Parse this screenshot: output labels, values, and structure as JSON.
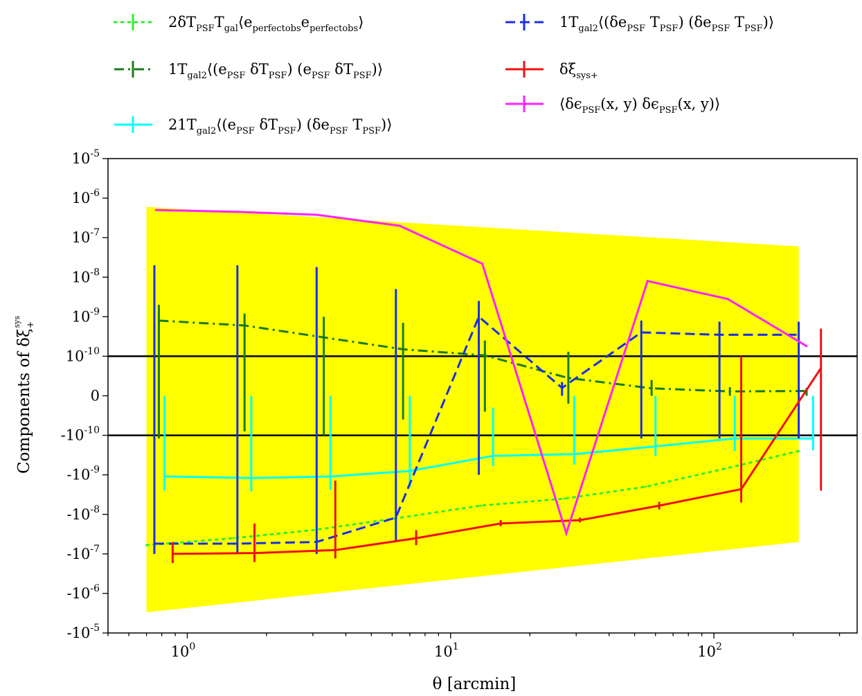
{
  "chart_data": {
    "type": "line",
    "xlabel": "θ [arcmin]",
    "ylabel_main": "Components of δξ",
    "ylabel_sub": "+",
    "ylabel_sup": "sys",
    "x_scale": "log",
    "y_scale": "symlog",
    "xlim": [
      0.5,
      350
    ],
    "ylim": [
      -1e-05,
      1e-05
    ],
    "linthresh": 1e-10,
    "x_ticks": [
      {
        "value": 1,
        "base": "10",
        "exp": "0"
      },
      {
        "value": 10,
        "base": "10",
        "exp": "1"
      },
      {
        "value": 100,
        "base": "10",
        "exp": "2"
      }
    ],
    "y_ticks": [
      {
        "value": 1e-05,
        "base": "10",
        "exp": "-5"
      },
      {
        "value": 1e-06,
        "base": "10",
        "exp": "-6"
      },
      {
        "value": 1e-07,
        "base": "10",
        "exp": "-7"
      },
      {
        "value": 1e-08,
        "base": "10",
        "exp": "-8"
      },
      {
        "value": 1e-09,
        "base": "10",
        "exp": "-9"
      },
      {
        "value": 1e-10,
        "base": "10",
        "exp": "-10"
      },
      {
        "value": 0,
        "base": "0",
        "exp": ""
      },
      {
        "value": -1e-10,
        "base": "-10",
        "exp": "-10"
      },
      {
        "value": -1e-09,
        "base": "-10",
        "exp": "-9"
      },
      {
        "value": -1e-08,
        "base": "-10",
        "exp": "-8"
      },
      {
        "value": -1e-07,
        "base": "-10",
        "exp": "-7"
      },
      {
        "value": -1e-06,
        "base": "-10",
        "exp": "-6"
      },
      {
        "value": -1e-05,
        "base": "-10",
        "exp": "-5"
      }
    ],
    "hlines": [
      1e-10,
      -1e-10
    ],
    "shaded_region": {
      "color": "#ffff00",
      "x": [
        0.7,
        210
      ],
      "upper": [
        6e-07,
        6e-08
      ],
      "lower": [
        -3e-06,
        -5e-08
      ]
    },
    "series": [
      {
        "legend_parts": [
          "2",
          "δT",
          "PSF",
          "T",
          "gal",
          "⟨e",
          "perfect",
          "obs",
          "e",
          "perfect",
          "obs",
          "⟩"
        ],
        "color": "#33ee33",
        "style": "dotted",
        "x": [
          0.7,
          1.5,
          3.0,
          6.0,
          13.0,
          27.0,
          55.0,
          110.0,
          210.0
        ],
        "y": [
          -6e-08,
          -4e-08,
          -2.5e-08,
          -1.3e-08,
          -6e-09,
          -4e-09,
          -2e-09,
          -7e-10,
          -2.5e-10
        ],
        "err": []
      },
      {
        "legend_parts": [
          "1",
          "T",
          "gal",
          "2",
          "⟨(e",
          "PSF",
          " δT",
          "PSF",
          ") (e",
          "PSF",
          " δT",
          "PSF",
          ")⟩"
        ],
        "color": "#1a7a1a",
        "style": "dashdot",
        "x": [
          0.78,
          1.65,
          3.3,
          6.6,
          13.5,
          28.0,
          58.0,
          115.0,
          225.0
        ],
        "y": [
          8e-10,
          6e-10,
          3e-10,
          1.5e-10,
          1.05e-10,
          4.5e-11,
          1.9e-11,
          1.1e-11,
          1.2e-11
        ],
        "err": [
          [
            -1.2e-10,
            2e-09
          ],
          [
            -9e-11,
            1.2e-09
          ],
          [
            -1e-10,
            1e-09
          ],
          [
            -6e-11,
            7e-10
          ],
          [
            -4e-11,
            2.5e-10
          ],
          [
            -2e-11,
            1.3e-10
          ],
          [
            0,
            4e-11
          ],
          [
            0,
            2.2e-11
          ],
          [
            0,
            2e-11
          ]
        ]
      },
      {
        "legend_parts": [
          "2",
          "1",
          "T",
          "gal",
          "2",
          "⟨(e",
          "PSF",
          " δT",
          "PSF",
          ") (δe",
          "PSF",
          " T",
          "PSF",
          ")⟩"
        ],
        "color": "#00ffff",
        "style": "solid",
        "x": [
          0.82,
          1.75,
          3.5,
          7.0,
          14.5,
          29.5,
          60.0,
          120.0,
          238.0
        ],
        "y": [
          -1.1e-09,
          -1.2e-09,
          -1.1e-09,
          -8e-10,
          -3.3e-10,
          -3e-10,
          -1.9e-10,
          -1.2e-10,
          -1.2e-10
        ],
        "err": [
          [
            -2.5e-09,
            0
          ],
          [
            -2.6e-09,
            0
          ],
          [
            -2.4e-09,
            0
          ],
          [
            -2e-09,
            0
          ],
          [
            -6e-10,
            -3e-11
          ],
          [
            -5.5e-10,
            0
          ],
          [
            -3.4e-10,
            0
          ],
          [
            -2.5e-10,
            0
          ],
          [
            -2.4e-10,
            0
          ]
        ]
      },
      {
        "legend_parts": [
          "1",
          "T",
          "gal",
          "2",
          "⟨(δe",
          "PSF",
          " T",
          "PSF",
          ") (δe",
          "PSF",
          " T",
          "PSF",
          ")⟩"
        ],
        "color": "#1a2ee6",
        "style": "dashed",
        "x": [
          0.75,
          1.55,
          3.1,
          6.2,
          12.8,
          26.5,
          53.0,
          105.0,
          210.0
        ],
        "y": [
          -5.5e-08,
          -5.5e-08,
          -5e-08,
          -1.2e-08,
          1e-09,
          2e-11,
          4e-10,
          3.5e-10,
          3.5e-10
        ],
        "err": [
          [
            -1e-07,
            2e-08
          ],
          [
            -1e-07,
            2e-08
          ],
          [
            -1e-07,
            1.8e-08
          ],
          [
            -5e-08,
            5e-09
          ],
          [
            -1e-09,
            2.5e-09
          ],
          [
            0,
            3.5e-11
          ],
          [
            -1.2e-10,
            8e-10
          ],
          [
            -1.2e-10,
            7.5e-10
          ],
          [
            -1.2e-10,
            7.5e-10
          ]
        ]
      },
      {
        "legend_parts": [
          "δξ",
          "sys",
          "+"
        ],
        "color": "#ee1111",
        "style": "solid",
        "x": [
          0.88,
          1.8,
          3.65,
          7.4,
          15.5,
          31.0,
          62.0,
          127.0,
          255.0
        ],
        "y": [
          -1e-07,
          -9.5e-08,
          -8e-08,
          -4e-08,
          -1.7e-08,
          -1.4e-08,
          -6e-09,
          -2.3e-09,
          7e-11
        ],
        "err": [
          [
            -1.7e-07,
            -5e-08
          ],
          [
            -1.6e-07,
            -1.7e-08
          ],
          [
            -1.3e-07,
            -1.4e-09
          ],
          [
            -6e-08,
            -2.5e-08
          ],
          [
            -2e-08,
            -1.4e-08
          ],
          [
            -1.6e-08,
            -1.2e-08
          ],
          [
            -7.5e-09,
            -4.8e-09
          ],
          [
            -5e-09,
            1e-10
          ],
          [
            -2.5e-09,
            5e-10
          ]
        ]
      },
      {
        "legend_parts": [
          "⟨δϵ",
          "PSF",
          "(x, y) δϵ",
          "PSF",
          "(x, y)⟩"
        ],
        "color": "#ff22ff",
        "style": "solid",
        "x": [
          0.76,
          1.55,
          3.1,
          6.4,
          13.2,
          27.5,
          56.0,
          113.0,
          225.0
        ],
        "y": [
          5e-07,
          4.5e-07,
          3.8e-07,
          2e-07,
          2.2e-08,
          -3e-08,
          8e-09,
          2.8e-09,
          1.8e-10
        ],
        "err": []
      }
    ]
  }
}
